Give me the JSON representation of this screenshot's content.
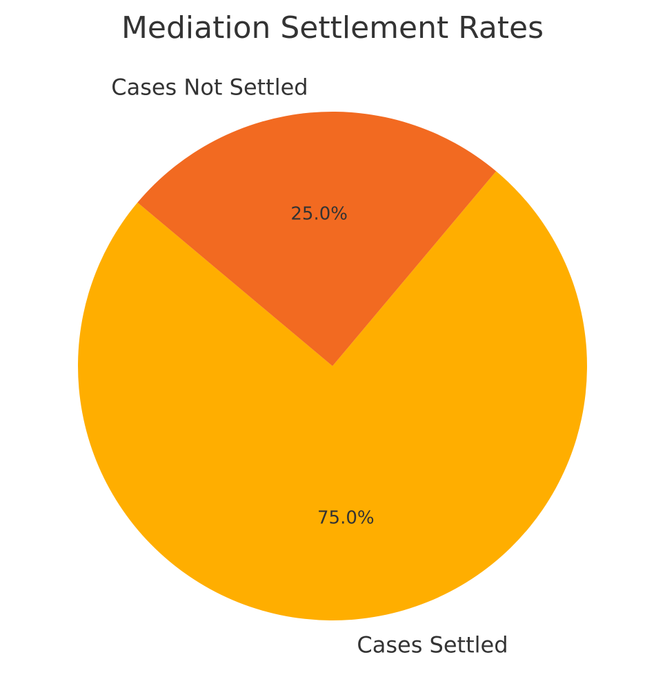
{
  "chart_data": {
    "type": "pie",
    "title": "Mediation Settlement Rates",
    "categories": [
      "Cases Settled",
      "Cases Not Settled"
    ],
    "values": [
      75,
      25
    ],
    "percent_labels": [
      "75.0%",
      "25.0%"
    ],
    "colors": [
      "#FFAE00",
      "#F26A21"
    ],
    "start_angle_deg": 140,
    "direction": "counterclockwise",
    "legend": "none"
  }
}
